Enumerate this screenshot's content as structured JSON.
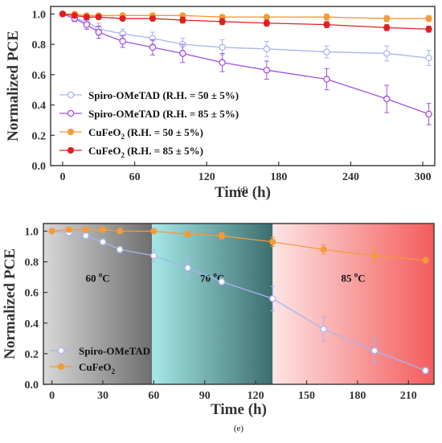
{
  "chart_data": [
    {
      "type": "line",
      "panel_label": "(d)",
      "xlabel": "Time (h)",
      "ylabel": "Normalized PCE",
      "xlim": [
        -10,
        310
      ],
      "ylim": [
        0.0,
        1.05
      ],
      "xticks": [
        0,
        60,
        120,
        180,
        240,
        300
      ],
      "yticks": [
        0.0,
        0.2,
        0.4,
        0.6,
        0.8,
        1.0
      ],
      "grid": false,
      "legend_position": "lower-left",
      "series": [
        {
          "name": "Spiro-OMeTAD (R.H. = 50 ± 5%)",
          "color": "#a9b4f0",
          "marker": "open-circle",
          "x": [
            0,
            10,
            20,
            30,
            50,
            75,
            100,
            133,
            170,
            220,
            270,
            305
          ],
          "y": [
            1.0,
            0.97,
            0.95,
            0.9,
            0.87,
            0.84,
            0.8,
            0.78,
            0.77,
            0.75,
            0.74,
            0.71
          ],
          "err": [
            0.0,
            0.02,
            0.02,
            0.04,
            0.03,
            0.04,
            0.04,
            0.05,
            0.05,
            0.04,
            0.05,
            0.05
          ]
        },
        {
          "name": "Spiro-OMeTAD (R.H. = 85 ± 5%)",
          "color": "#a150e0",
          "marker": "open-circle",
          "x": [
            0,
            10,
            20,
            30,
            50,
            75,
            100,
            133,
            170,
            220,
            270,
            305
          ],
          "y": [
            1.0,
            0.97,
            0.93,
            0.88,
            0.82,
            0.78,
            0.74,
            0.68,
            0.63,
            0.57,
            0.44,
            0.34
          ],
          "err": [
            0.0,
            0.02,
            0.03,
            0.04,
            0.04,
            0.05,
            0.06,
            0.06,
            0.06,
            0.07,
            0.09,
            0.07
          ]
        },
        {
          "name": "CuFeO2 (R.H. = 50 ± 5%)",
          "color": "#f59a3a",
          "marker": "filled-circle",
          "x": [
            0,
            10,
            20,
            30,
            50,
            75,
            100,
            133,
            170,
            220,
            270,
            305
          ],
          "y": [
            1.0,
            1.0,
            0.99,
            0.99,
            0.99,
            0.99,
            0.99,
            0.98,
            0.98,
            0.98,
            0.97,
            0.97
          ],
          "err": [
            0.0,
            0.005,
            0.005,
            0.01,
            0.01,
            0.01,
            0.01,
            0.01,
            0.01,
            0.02,
            0.02,
            0.02
          ]
        },
        {
          "name": "CuFeO2 (R.H. = 85 ± 5%)",
          "color": "#e02020",
          "marker": "filled-circle",
          "x": [
            0,
            10,
            20,
            30,
            50,
            75,
            100,
            133,
            170,
            220,
            270,
            305
          ],
          "y": [
            1.0,
            0.99,
            0.98,
            0.98,
            0.97,
            0.97,
            0.96,
            0.95,
            0.94,
            0.93,
            0.91,
            0.9
          ],
          "err": [
            0.0,
            0.01,
            0.01,
            0.01,
            0.01,
            0.01,
            0.02,
            0.02,
            0.02,
            0.02,
            0.02,
            0.02
          ]
        }
      ],
      "legend": [
        {
          "prefix": "Spiro-OMeTAD (R.H. = 50 ± 5%)",
          "sub": "",
          "suffix": ""
        },
        {
          "prefix": "Spiro-OMeTAD (R.H. = 85 ± 5%)",
          "sub": "",
          "suffix": ""
        },
        {
          "prefix": "CuFeO",
          "sub": "2",
          "suffix": " (R.H. = 50 ± 5%)"
        },
        {
          "prefix": "CuFeO",
          "sub": "2",
          "suffix": " (R.H. = 85 ± 5%)"
        }
      ]
    },
    {
      "type": "line",
      "panel_label": "(e)",
      "xlabel": "Time (h)",
      "ylabel": "Normalized PCE",
      "xlim": [
        -5,
        225
      ],
      "ylim": [
        0.0,
        1.05
      ],
      "xticks": [
        0,
        30,
        60,
        90,
        120,
        150,
        180,
        210
      ],
      "yticks": [
        0.0,
        0.2,
        0.4,
        0.6,
        0.8,
        1.0
      ],
      "grid": false,
      "legend_position": "lower-left",
      "regions": [
        {
          "label_base": "60 ",
          "label_sup": "o",
          "label_tail": "C",
          "x": [
            -5,
            59
          ],
          "color_start": "#d8d8d8",
          "color_end": "#6e6e6e"
        },
        {
          "label_base": "70 ",
          "label_sup": "o",
          "label_tail": "C",
          "x": [
            59,
            130
          ],
          "color_start": "#a6e8e8",
          "color_end": "#3c6e6e"
        },
        {
          "label_base": "85 ",
          "label_sup": "o",
          "label_tail": "C",
          "x": [
            130,
            225
          ],
          "color_start": "#fde4e4",
          "color_end": "#f45c5c"
        }
      ],
      "series": [
        {
          "name": "Spiro-OMeTAD",
          "color": "#a9b4f0",
          "marker": "open-circle",
          "x": [
            0,
            10,
            20,
            30,
            40,
            60,
            80,
            100,
            130,
            160,
            190,
            220
          ],
          "y": [
            1.0,
            0.99,
            0.97,
            0.93,
            0.88,
            0.84,
            0.76,
            0.67,
            0.56,
            0.36,
            0.22,
            0.09
          ],
          "err": [
            0.0,
            0.01,
            0.02,
            0.02,
            0.02,
            0.04,
            0.07,
            0.02,
            0.08,
            0.08,
            0.08,
            0.02
          ]
        },
        {
          "name": "CuFeO2",
          "color": "#f59a3a",
          "marker": "filled-circle",
          "x": [
            0,
            10,
            20,
            30,
            40,
            60,
            80,
            100,
            130,
            160,
            190,
            220
          ],
          "y": [
            1.0,
            1.01,
            1.01,
            1.01,
            1.0,
            1.0,
            0.98,
            0.97,
            0.93,
            0.88,
            0.84,
            0.81
          ],
          "err": [
            0.0,
            0.01,
            0.01,
            0.01,
            0.01,
            0.01,
            0.02,
            0.02,
            0.03,
            0.03,
            0.04,
            0.01
          ]
        }
      ],
      "legend": [
        {
          "prefix": "Spiro-OMeTAD",
          "sub": "",
          "suffix": ""
        },
        {
          "prefix": "CuFeO",
          "sub": "2",
          "suffix": ""
        }
      ]
    }
  ]
}
